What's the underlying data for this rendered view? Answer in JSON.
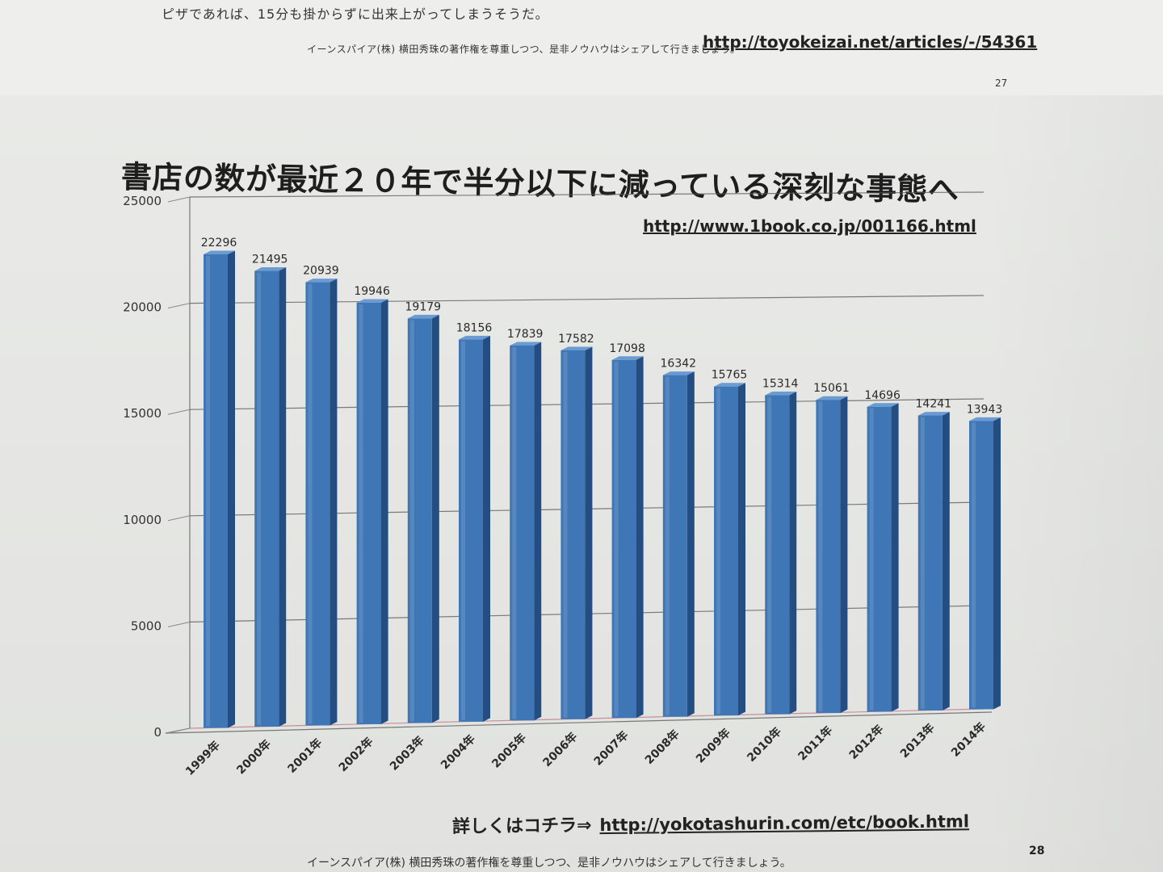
{
  "previous_page": {
    "text": "ピザであれば、15分も掛からずに出来上がってしまうそうだ。",
    "link": "http://toyokeizai.net/articles/-/54361",
    "footer": "イーンスパイア(株) 横田秀珠の著作権を尊重しつつ、是非ノウハウはシェアして行きましょう。",
    "page_number": "27"
  },
  "slide": {
    "title": "書店の数が最近２０年で半分以下に減っている深刻な事態へ",
    "source_link": "http://www.1book.co.jp/001166.html",
    "details_label": "詳しくはコチラ⇒",
    "details_link": "http://yokotashurin.com/etc/book.html",
    "footer": "イーンスパイア(株) 横田秀珠の著作権を尊重しつつ、是非ノウハウはシェアして行きましょう。",
    "page_number": "28"
  },
  "colors": {
    "bar": "#3f77b6",
    "bar_dark": "#244d82",
    "bar_light": "#6a9bd1",
    "grid": "#555555",
    "base_line": "#c07080"
  },
  "chart_data": {
    "type": "bar",
    "title": "書店の数が最近２０年で半分以下に減っている深刻な事態へ",
    "categories": [
      "1999年",
      "2000年",
      "2001年",
      "2002年",
      "2003年",
      "2004年",
      "2005年",
      "2006年",
      "2007年",
      "2008年",
      "2009年",
      "2010年",
      "2011年",
      "2012年",
      "2013年",
      "2014年"
    ],
    "values": [
      22296,
      21495,
      20939,
      19946,
      19179,
      18156,
      17839,
      17582,
      17098,
      16342,
      15765,
      15314,
      15061,
      14696,
      14241,
      13943
    ],
    "ylim": [
      0,
      25000
    ],
    "yticks": [
      "0",
      "5000",
      "10000",
      "15000",
      "20000",
      "25000"
    ],
    "xlabel": "",
    "ylabel": "",
    "grid": true,
    "legend": "none"
  }
}
